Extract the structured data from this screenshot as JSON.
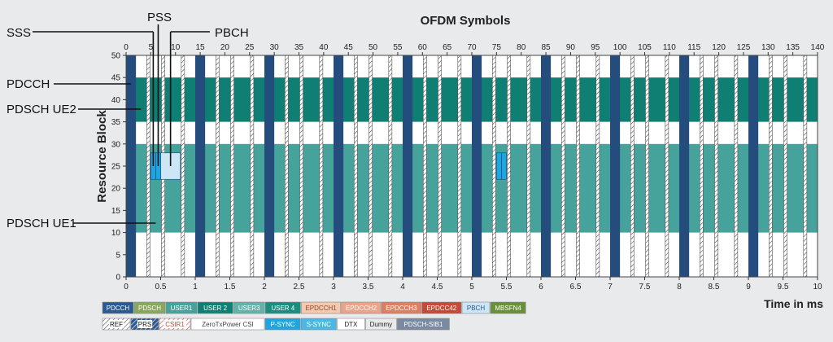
{
  "chart_data": {
    "type": "resource-grid",
    "title": "OFDM Symbols",
    "xlabel": "Time in ms",
    "ylabel": "Resource Block",
    "symbol_axis": {
      "range": [
        0,
        140
      ],
      "ticks": [
        0,
        5,
        10,
        15,
        20,
        25,
        30,
        35,
        40,
        45,
        50,
        55,
        60,
        65,
        70,
        75,
        80,
        85,
        90,
        95,
        100,
        105,
        110,
        115,
        120,
        125,
        130,
        135,
        140
      ]
    },
    "time_axis": {
      "range": [
        0,
        10
      ],
      "ticks": [
        "0",
        "0.5",
        "1",
        "1.5",
        "2",
        "2.5",
        "3",
        "3.5",
        "4",
        "4.5",
        "5",
        "5.5",
        "6",
        "6.5",
        "7",
        "7.5",
        "8",
        "8.5",
        "9",
        "9.5",
        "10"
      ]
    },
    "rb_axis": {
      "range": [
        0,
        50
      ],
      "ticks": [
        0,
        5,
        10,
        15,
        20,
        25,
        30,
        35,
        40,
        45,
        50
      ]
    },
    "allocations": [
      {
        "name": "PDSCH UE2",
        "color": "#0e7f72",
        "symbols": [
          0,
          140
        ],
        "rb": [
          35,
          45
        ]
      },
      {
        "name": "PDSCH UE1",
        "color": "#45a39b",
        "symbols": [
          0,
          140
        ],
        "rb": [
          10,
          30
        ]
      },
      {
        "name": "PBCH",
        "color": "#cde6f5",
        "symbols": [
          7,
          11
        ],
        "rb": [
          22,
          28
        ]
      },
      {
        "name": "PSS",
        "color": "#1fa6e0",
        "symbols": [
          6,
          7
        ],
        "rb": [
          22,
          28
        ]
      },
      {
        "name": "SSS",
        "color": "#1fa6e0",
        "symbols": [
          5,
          6
        ],
        "rb": [
          22,
          28
        ]
      },
      {
        "name": "PSS",
        "color": "#1fa6e0",
        "symbols": [
          76,
          77
        ],
        "rb": [
          22,
          28
        ]
      },
      {
        "name": "SSS",
        "color": "#1fa6e0",
        "symbols": [
          75,
          76
        ],
        "rb": [
          22,
          28
        ]
      }
    ],
    "pdcch_symbols": [
      0,
      1,
      14,
      15,
      28,
      29,
      42,
      43,
      56,
      57,
      70,
      71,
      84,
      85,
      98,
      99,
      112,
      113,
      126,
      127
    ],
    "callouts": [
      "SSS",
      "PSS",
      "PBCH",
      "PDCCH",
      "PDSCH UE2",
      "PDSCH UE1"
    ],
    "legend_row1": [
      {
        "label": "PDCCH",
        "bg": "#2d5a8e",
        "fg": "#ffffff",
        "pattern": ""
      },
      {
        "label": "PDSCH",
        "bg": "#8aa75f",
        "fg": "#ffffff",
        "pattern": ""
      },
      {
        "label": "USER1",
        "bg": "#45a39b",
        "fg": "#ffffff",
        "pattern": ""
      },
      {
        "label": "USER 2",
        "bg": "#0e7f72",
        "fg": "#ffffff",
        "pattern": ""
      },
      {
        "label": "USER3",
        "bg": "#64b1a9",
        "fg": "#ffffff",
        "pattern": ""
      },
      {
        "label": "USER 4",
        "bg": "#1b8c80",
        "fg": "#ffffff",
        "pattern": ""
      },
      {
        "label": "EPDCCH1",
        "bg": "#f4c9b0",
        "fg": "#8a4a2a",
        "pattern": ""
      },
      {
        "label": "EPDCCH2",
        "bg": "#eaa48a",
        "fg": "#ffffff",
        "pattern": ""
      },
      {
        "label": "EPDCCH3",
        "bg": "#de7f63",
        "fg": "#ffffff",
        "pattern": ""
      },
      {
        "label": "EPDCC42",
        "bg": "#c44a3a",
        "fg": "#ffffff",
        "pattern": ""
      },
      {
        "label": "PBCH",
        "bg": "#cde6f5",
        "fg": "#2a5a8a",
        "pattern": ""
      },
      {
        "label": "MBSFN4",
        "bg": "#6a8f3a",
        "fg": "#ffffff",
        "pattern": ""
      }
    ],
    "legend_row2": [
      {
        "label": "REF",
        "bg": "#ffffff",
        "fg": "#111111",
        "pattern": "hatch"
      },
      {
        "label": "PRS",
        "bg": "#2d5a8e",
        "fg": "#ffffff",
        "pattern": "hatchwhite"
      },
      {
        "label": "CSIR1",
        "bg": "#ffffff",
        "fg": "#c44a3a",
        "pattern": "hatchred"
      },
      {
        "label": "ZeroTxPower CSI",
        "bg": "#ffffff",
        "fg": "#444444",
        "pattern": ""
      },
      {
        "label": "P-SYNC",
        "bg": "#1fa6e0",
        "fg": "#ffffff",
        "pattern": ""
      },
      {
        "label": "S-SYNC",
        "bg": "#4ab8e6",
        "fg": "#ffffff",
        "pattern": ""
      },
      {
        "label": "DTX",
        "bg": "#ffffff",
        "fg": "#222222",
        "pattern": ""
      },
      {
        "label": "Dummy",
        "bg": "#e9eaec",
        "fg": "#222222",
        "pattern": ""
      },
      {
        "label": "PDSCH-SIB1",
        "bg": "#7a8aa0",
        "fg": "#ffffff",
        "pattern": ""
      }
    ]
  }
}
